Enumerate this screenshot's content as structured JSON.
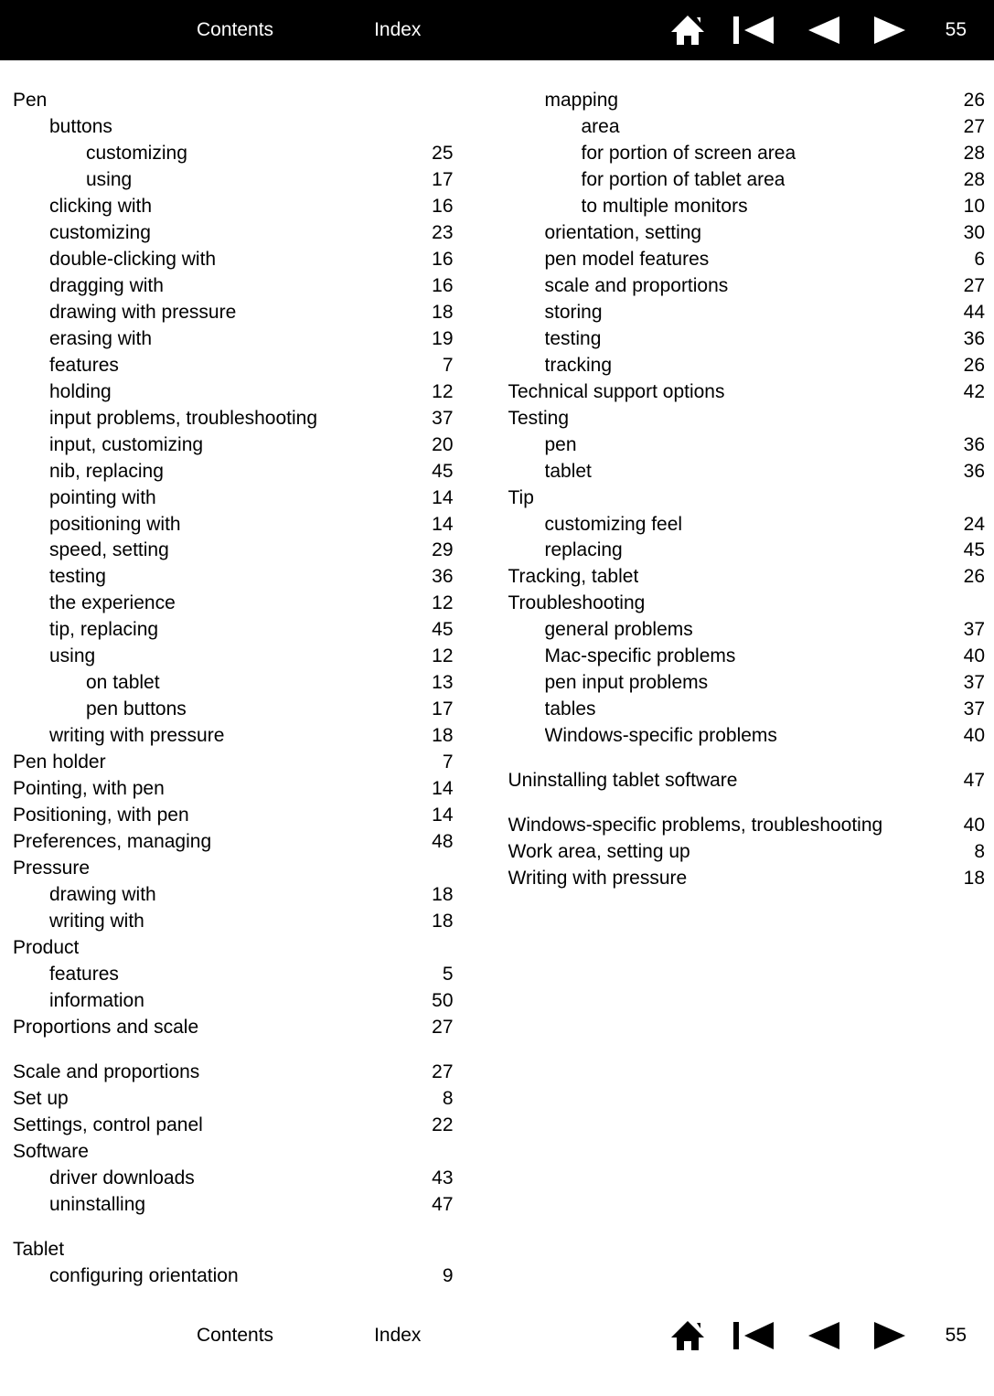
{
  "nav": {
    "contents_label": "Contents",
    "index_label": "Index",
    "page_number": "55",
    "icon_color_top": "#ffffff",
    "icon_color_bottom": "#000000"
  },
  "left_entries": [
    {
      "label": "Pen",
      "page": "",
      "level": 0
    },
    {
      "label": "buttons",
      "page": "",
      "level": 1
    },
    {
      "label": "customizing",
      "page": "25",
      "level": 2
    },
    {
      "label": "using",
      "page": "17",
      "level": 2
    },
    {
      "label": "clicking with",
      "page": "16",
      "level": 1
    },
    {
      "label": "customizing",
      "page": "23",
      "level": 1
    },
    {
      "label": "double-clicking with",
      "page": "16",
      "level": 1
    },
    {
      "label": "dragging with",
      "page": "16",
      "level": 1
    },
    {
      "label": "drawing with pressure",
      "page": "18",
      "level": 1
    },
    {
      "label": "erasing with",
      "page": "19",
      "level": 1
    },
    {
      "label": "features",
      "page": "7",
      "level": 1
    },
    {
      "label": "holding",
      "page": "12",
      "level": 1
    },
    {
      "label": "input problems, troubleshooting",
      "page": "37",
      "level": 1
    },
    {
      "label": "input, customizing",
      "page": "20",
      "level": 1
    },
    {
      "label": "nib, replacing",
      "page": "45",
      "level": 1
    },
    {
      "label": "pointing with",
      "page": "14",
      "level": 1
    },
    {
      "label": "positioning with",
      "page": "14",
      "level": 1
    },
    {
      "label": "speed, setting",
      "page": "29",
      "level": 1
    },
    {
      "label": "testing",
      "page": "36",
      "level": 1
    },
    {
      "label": "the experience",
      "page": "12",
      "level": 1
    },
    {
      "label": "tip, replacing",
      "page": "45",
      "level": 1
    },
    {
      "label": "using",
      "page": "12",
      "level": 1
    },
    {
      "label": "on tablet",
      "page": "13",
      "level": 2
    },
    {
      "label": "pen buttons",
      "page": "17",
      "level": 2
    },
    {
      "label": "writing with pressure",
      "page": "18",
      "level": 1
    },
    {
      "label": "Pen holder",
      "page": "7",
      "level": 0
    },
    {
      "label": "Pointing, with pen",
      "page": "14",
      "level": 0
    },
    {
      "label": "Positioning, with pen",
      "page": "14",
      "level": 0
    },
    {
      "label": "Preferences, managing",
      "page": "48",
      "level": 0
    },
    {
      "label": "Pressure",
      "page": "",
      "level": 0
    },
    {
      "label": "drawing with",
      "page": "18",
      "level": 1
    },
    {
      "label": "writing with",
      "page": "18",
      "level": 1
    },
    {
      "label": "Product",
      "page": "",
      "level": 0
    },
    {
      "label": "features",
      "page": "5",
      "level": 1
    },
    {
      "label": "information",
      "page": "50",
      "level": 1
    },
    {
      "label": "Proportions and scale",
      "page": "27",
      "level": 0
    },
    {
      "gap": true
    },
    {
      "label": "Scale and proportions",
      "page": "27",
      "level": 0
    },
    {
      "label": "Set up",
      "page": "8",
      "level": 0
    },
    {
      "label": "Settings, control panel",
      "page": "22",
      "level": 0
    },
    {
      "label": "Software",
      "page": "",
      "level": 0
    },
    {
      "label": "driver downloads",
      "page": "43",
      "level": 1
    },
    {
      "label": "uninstalling",
      "page": "47",
      "level": 1
    },
    {
      "gap": true
    },
    {
      "label": "Tablet",
      "page": "",
      "level": 0
    },
    {
      "label": "configuring orientation",
      "page": "9",
      "level": 1
    }
  ],
  "right_entries": [
    {
      "label": "mapping",
      "page": "26",
      "level": 1
    },
    {
      "label": "area",
      "page": "27",
      "level": 2
    },
    {
      "label": "for portion of screen area",
      "page": "28",
      "level": 2
    },
    {
      "label": "for portion of tablet area",
      "page": "28",
      "level": 2
    },
    {
      "label": "to multiple monitors",
      "page": "10",
      "level": 2
    },
    {
      "label": "orientation, setting",
      "page": "30",
      "level": 1
    },
    {
      "label": "pen model features",
      "page": "6",
      "level": 1
    },
    {
      "label": "scale and proportions",
      "page": "27",
      "level": 1
    },
    {
      "label": "storing",
      "page": "44",
      "level": 1
    },
    {
      "label": "testing",
      "page": "36",
      "level": 1
    },
    {
      "label": "tracking",
      "page": "26",
      "level": 1
    },
    {
      "label": "Technical support options",
      "page": "42",
      "level": 0
    },
    {
      "label": "Testing",
      "page": "",
      "level": 0
    },
    {
      "label": "pen",
      "page": "36",
      "level": 1
    },
    {
      "label": "tablet",
      "page": "36",
      "level": 1
    },
    {
      "label": "Tip",
      "page": "",
      "level": 0
    },
    {
      "label": "customizing feel",
      "page": "24",
      "level": 1
    },
    {
      "label": "replacing",
      "page": "45",
      "level": 1
    },
    {
      "label": "Tracking, tablet",
      "page": "26",
      "level": 0
    },
    {
      "label": "Troubleshooting",
      "page": "",
      "level": 0
    },
    {
      "label": "general problems",
      "page": "37",
      "level": 1
    },
    {
      "label": "Mac-specific problems",
      "page": "40",
      "level": 1
    },
    {
      "label": "pen input problems",
      "page": "37",
      "level": 1
    },
    {
      "label": "tables",
      "page": "37",
      "level": 1
    },
    {
      "label": "Windows-specific problems",
      "page": "40",
      "level": 1
    },
    {
      "gap": true
    },
    {
      "label": "Uninstalling tablet software",
      "page": "47",
      "level": 0
    },
    {
      "gap": true
    },
    {
      "label": "Windows-specific problems, troubleshooting",
      "page": "40",
      "level": 0
    },
    {
      "label": "Work area, setting up",
      "page": "8",
      "level": 0
    },
    {
      "label": "Writing with pressure",
      "page": "18",
      "level": 0
    }
  ]
}
